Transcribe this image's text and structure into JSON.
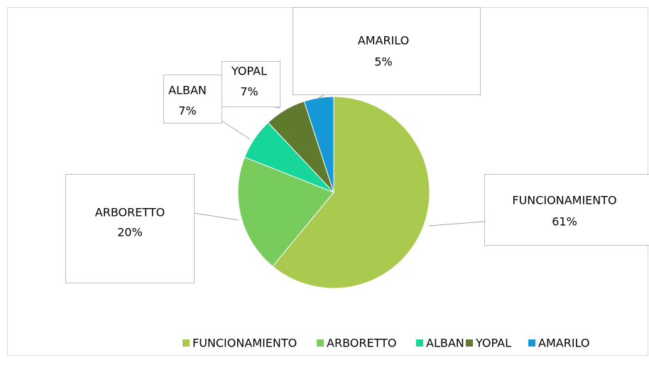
{
  "chart_data": {
    "type": "pie",
    "categories": [
      "FUNCIONAMIENTO",
      "ARBORETTO",
      "ALBAN",
      "YOPAL",
      "AMARILO"
    ],
    "values": [
      61,
      20,
      7,
      7,
      5
    ],
    "value_labels": [
      "61%",
      "20%",
      "7%",
      "7%",
      "5%"
    ],
    "colors": [
      "#a9c94f",
      "#78cc5c",
      "#17d69a",
      "#5f7a2c",
      "#1798d6"
    ],
    "legend": "bottom"
  }
}
